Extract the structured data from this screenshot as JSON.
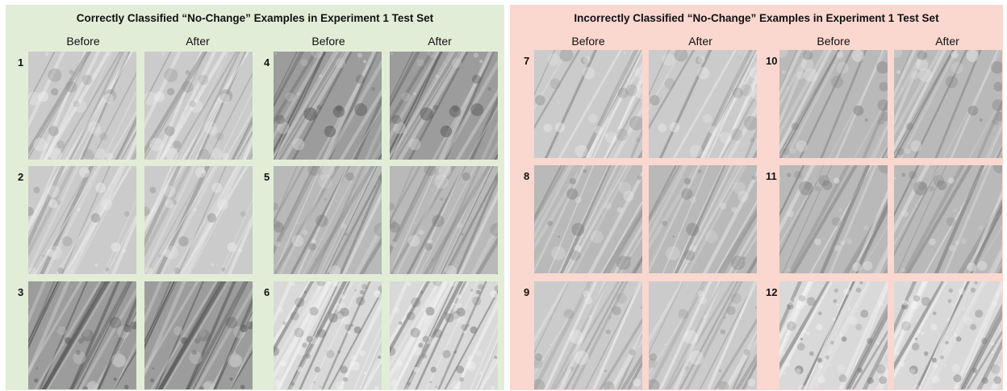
{
  "panels": [
    {
      "title": "Correctly Classified “No-Change” Examples in Experiment 1 Test Set",
      "background": "#e2edd8",
      "column_headers": [
        "Before",
        "After",
        "Before",
        "After"
      ],
      "examples": [
        {
          "number": "1",
          "tone": "light"
        },
        {
          "number": "2",
          "tone": "light"
        },
        {
          "number": "3",
          "tone": "dark"
        },
        {
          "number": "4",
          "tone": "dark"
        },
        {
          "number": "5",
          "tone": "mid"
        },
        {
          "number": "6",
          "tone": "speckled"
        }
      ]
    },
    {
      "title": "Incorrectly Classified “No-Change” Examples in Experiment 1 Test Set",
      "background": "#fad7cf",
      "column_headers": [
        "Before",
        "After",
        "Before",
        "After"
      ],
      "examples": [
        {
          "number": "7",
          "tone": "light"
        },
        {
          "number": "8",
          "tone": "mid"
        },
        {
          "number": "9",
          "tone": "light"
        },
        {
          "number": "10",
          "tone": "mid"
        },
        {
          "number": "11",
          "tone": "mid"
        },
        {
          "number": "12",
          "tone": "speckled"
        }
      ]
    }
  ],
  "image_labels": {
    "before": "Before",
    "after": "After"
  }
}
